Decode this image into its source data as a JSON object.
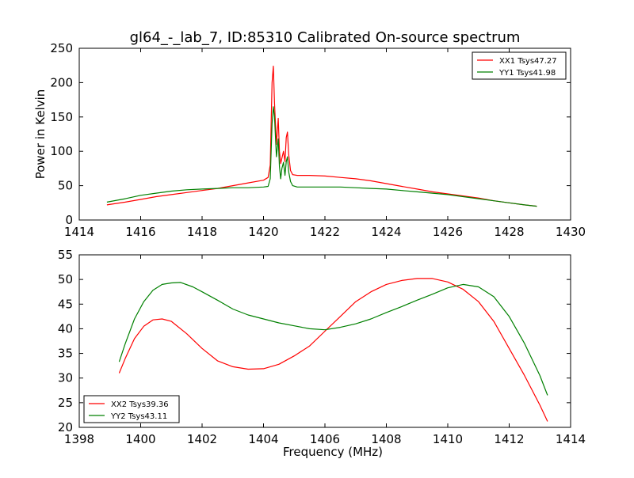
{
  "figure": {
    "title": "gl64_-_lab_7, ID:85310 Calibrated On-source spectrum"
  },
  "chart_data": [
    {
      "type": "line",
      "ylabel": "Power in Kelvin",
      "xlabel": "",
      "xlim": [
        1414,
        1430
      ],
      "ylim": [
        0,
        250
      ],
      "xticks": [
        1414,
        1416,
        1418,
        1420,
        1422,
        1424,
        1426,
        1428,
        1430
      ],
      "yticks": [
        0,
        50,
        100,
        150,
        200,
        250
      ],
      "grid": false,
      "legend_position": "top-right",
      "series": [
        {
          "name": "XX1 Tsys47.27",
          "color": "#ff0000",
          "x": [
            1414.9,
            1415.5,
            1416.0,
            1416.5,
            1417.0,
            1417.5,
            1418.0,
            1418.5,
            1419.0,
            1419.5,
            1420.0,
            1420.15,
            1420.22,
            1420.28,
            1420.32,
            1420.36,
            1420.42,
            1420.48,
            1420.52,
            1420.56,
            1420.6,
            1420.65,
            1420.7,
            1420.74,
            1420.78,
            1420.82,
            1420.88,
            1420.95,
            1421.1,
            1421.5,
            1422.0,
            1422.5,
            1423.0,
            1423.5,
            1424.0,
            1424.5,
            1425.0,
            1425.5,
            1426.0,
            1426.5,
            1427.0,
            1427.5,
            1428.0,
            1428.5,
            1428.9
          ],
          "y": [
            22,
            26,
            30,
            34,
            37,
            40,
            43,
            46,
            50,
            54,
            58,
            62,
            80,
            200,
            224,
            170,
            110,
            148,
            100,
            82,
            90,
            100,
            85,
            120,
            128,
            95,
            72,
            66,
            65,
            65,
            64,
            62,
            60,
            57,
            53,
            49,
            45,
            41,
            38,
            35,
            32,
            28,
            25,
            22,
            20
          ]
        },
        {
          "name": "YY1 Tsys41.98",
          "color": "#008000",
          "x": [
            1414.9,
            1415.5,
            1416.0,
            1416.5,
            1417.0,
            1417.5,
            1418.0,
            1418.5,
            1419.0,
            1419.5,
            1420.0,
            1420.15,
            1420.22,
            1420.28,
            1420.32,
            1420.36,
            1420.42,
            1420.48,
            1420.52,
            1420.56,
            1420.6,
            1420.65,
            1420.7,
            1420.74,
            1420.78,
            1420.82,
            1420.88,
            1420.95,
            1421.1,
            1421.5,
            1422.0,
            1422.5,
            1423.0,
            1423.5,
            1424.0,
            1424.5,
            1425.0,
            1425.5,
            1426.0,
            1426.5,
            1427.0,
            1427.5,
            1428.0,
            1428.5,
            1428.9
          ],
          "y": [
            26,
            31,
            36,
            39,
            42,
            44,
            45,
            46,
            47,
            47,
            48,
            49,
            60,
            140,
            165,
            150,
            92,
            118,
            78,
            60,
            75,
            84,
            65,
            85,
            92,
            70,
            56,
            50,
            48,
            48,
            48,
            48,
            47,
            46,
            45,
            43,
            41,
            39,
            37,
            34,
            31,
            28,
            25,
            22,
            20
          ]
        }
      ]
    },
    {
      "type": "line",
      "ylabel": "",
      "xlabel": "Frequency (MHz)",
      "xlim": [
        1398,
        1414
      ],
      "ylim": [
        20,
        55
      ],
      "xticks": [
        1398,
        1400,
        1402,
        1404,
        1406,
        1408,
        1410,
        1412,
        1414
      ],
      "yticks": [
        20,
        25,
        30,
        35,
        40,
        45,
        50,
        55
      ],
      "grid": false,
      "legend_position": "bottom-left",
      "series": [
        {
          "name": "XX2 Tsys39.36",
          "color": "#ff0000",
          "x": [
            1399.3,
            1399.5,
            1399.8,
            1400.1,
            1400.4,
            1400.7,
            1401.0,
            1401.5,
            1402.0,
            1402.5,
            1403.0,
            1403.5,
            1404.0,
            1404.5,
            1405.0,
            1405.5,
            1406.0,
            1406.5,
            1407.0,
            1407.5,
            1408.0,
            1408.5,
            1409.0,
            1409.5,
            1410.0,
            1410.5,
            1411.0,
            1411.5,
            1412.0,
            1412.5,
            1413.0,
            1413.25
          ],
          "y": [
            31,
            34,
            38,
            40.5,
            41.8,
            42,
            41.5,
            39,
            36,
            33.5,
            32.3,
            31.8,
            31.9,
            32.8,
            34.5,
            36.5,
            39.5,
            42.5,
            45.5,
            47.5,
            49,
            49.8,
            50.2,
            50.2,
            49.5,
            48,
            45.5,
            41.5,
            36,
            30.5,
            24.5,
            21.2
          ]
        },
        {
          "name": "YY2 Tsys43.11",
          "color": "#008000",
          "x": [
            1399.3,
            1399.5,
            1399.8,
            1400.1,
            1400.4,
            1400.7,
            1401.0,
            1401.3,
            1401.7,
            1402.0,
            1402.5,
            1403.0,
            1403.5,
            1404.0,
            1404.5,
            1405.0,
            1405.5,
            1406.0,
            1406.5,
            1407.0,
            1407.5,
            1408.0,
            1408.5,
            1409.0,
            1409.5,
            1410.0,
            1410.5,
            1411.0,
            1411.5,
            1412.0,
            1412.5,
            1413.0,
            1413.25
          ],
          "y": [
            33.3,
            37,
            42,
            45.5,
            47.8,
            49,
            49.3,
            49.4,
            48.5,
            47.5,
            45.8,
            44,
            42.8,
            42,
            41.2,
            40.6,
            40,
            39.8,
            40.3,
            41,
            42,
            43.3,
            44.5,
            45.8,
            47,
            48.3,
            49,
            48.5,
            46.5,
            42.5,
            37,
            30.5,
            26.5
          ]
        }
      ]
    }
  ]
}
